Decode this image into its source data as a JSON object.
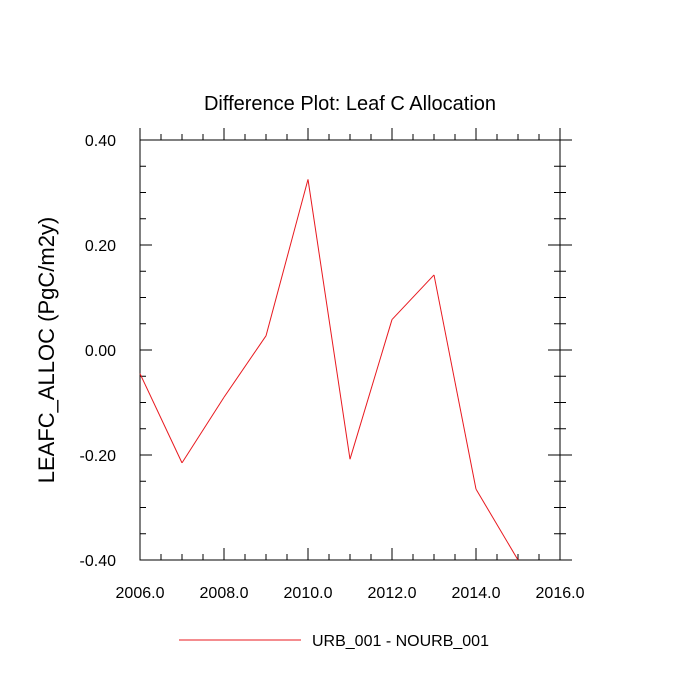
{
  "chart_data": {
    "type": "line",
    "title": "Difference Plot: Leaf C Allocation",
    "xlabel": "",
    "ylabel": "LEAFC_ALLOC  (PgC/m2y)",
    "xlim": [
      2006,
      2016
    ],
    "ylim": [
      -0.4,
      0.4
    ],
    "x_ticks": [
      2006,
      2008,
      2010,
      2012,
      2014,
      2016
    ],
    "x_tick_labels": [
      "2006.0",
      "2008.0",
      "2010.0",
      "2012.0",
      "2014.0",
      "2016.0"
    ],
    "y_ticks": [
      0.4,
      0.2,
      0.0,
      -0.2,
      -0.4
    ],
    "y_tick_labels": [
      "0.40",
      "0.20",
      "0.00",
      "-0.20",
      "-0.40"
    ],
    "x_minor_step": 0.5,
    "y_minor_step": 0.05,
    "grid": false,
    "legend_position": "bottom-center",
    "series": [
      {
        "name": "URB_001 - NOURB_001",
        "color": "#e8191f",
        "x": [
          2006,
          2007,
          2008,
          2009,
          2010,
          2011,
          2012,
          2013,
          2014,
          2015
        ],
        "values": [
          -0.045,
          -0.215,
          -0.09,
          0.027,
          0.325,
          -0.208,
          0.058,
          0.143,
          -0.265,
          -0.4
        ]
      }
    ]
  }
}
